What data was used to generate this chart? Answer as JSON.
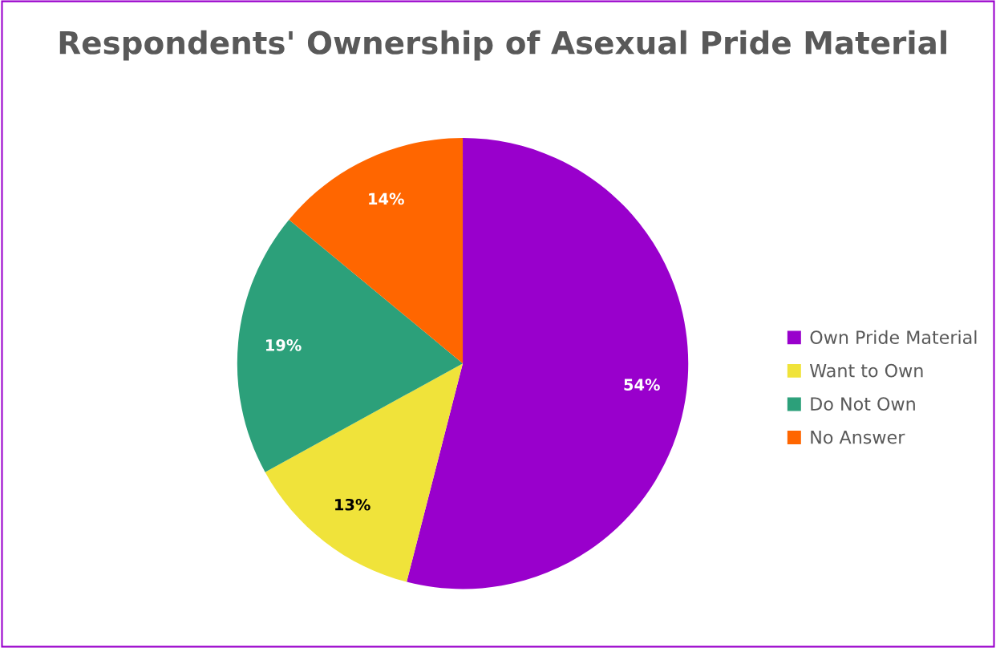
{
  "chart_data": {
    "type": "pie",
    "title": "Respondents' Ownership of Asexual Pride Material",
    "categories": [
      "Own Pride Material",
      "Want to Own",
      "Do Not Own",
      "No Answer"
    ],
    "values": [
      54,
      13,
      19,
      14
    ],
    "colors": [
      "#9900cc",
      "#f0e33a",
      "#2ca07a",
      "#ff6600"
    ],
    "value_labels": [
      "54%",
      "13%",
      "19%",
      "14%"
    ],
    "legend": "right"
  }
}
